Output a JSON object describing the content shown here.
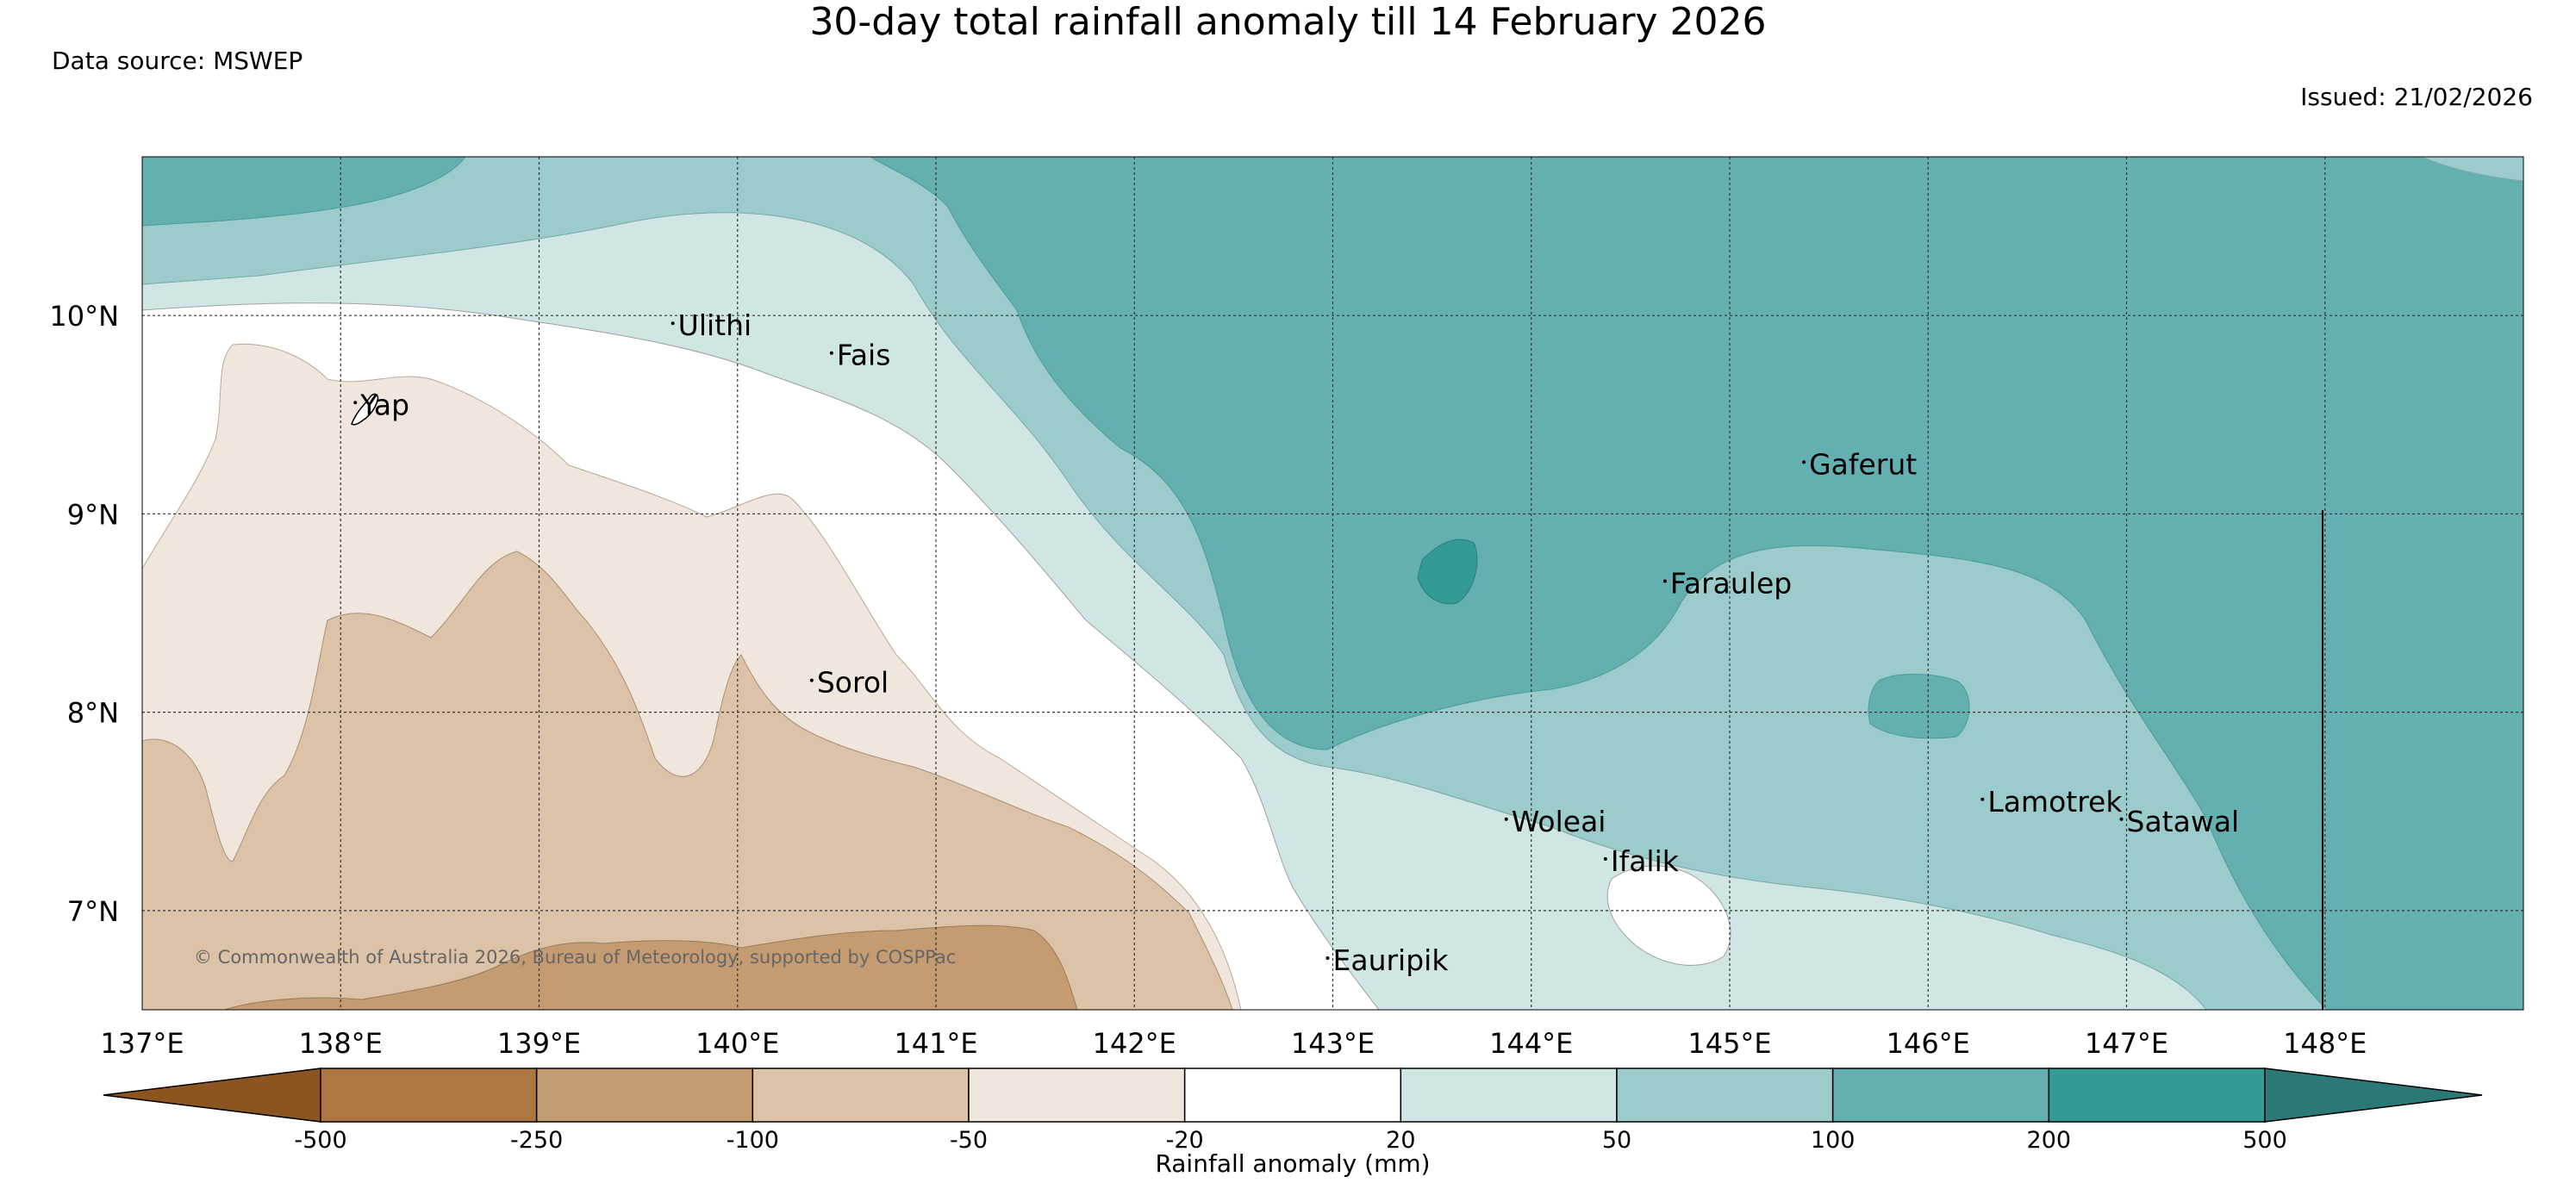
{
  "header": {
    "title": "30-day total rainfall anomaly till 14 February 2026",
    "source": "Data source: MSWEP",
    "issued": "Issued: 21/02/2026"
  },
  "map": {
    "lon_range": [
      137,
      149
    ],
    "lat_range": [
      6.5,
      10.8
    ],
    "lon_ticks": [
      "137°E",
      "138°E",
      "139°E",
      "140°E",
      "141°E",
      "142°E",
      "143°E",
      "144°E",
      "145°E",
      "146°E",
      "147°E",
      "148°E"
    ],
    "lat_ticks": [
      "10°N",
      "9°N",
      "8°N",
      "7°N"
    ],
    "copyright": "© Commonwealth of Australia 2026, Bureau of Meteorology, supported by COSPPac",
    "places": [
      {
        "name": "Ulithi",
        "lon": 139.7,
        "lat": 9.9
      },
      {
        "name": "Fais",
        "lon": 140.5,
        "lat": 9.75
      },
      {
        "name": "Yap",
        "lon": 138.1,
        "lat": 9.5
      },
      {
        "name": "Gaferut",
        "lon": 145.4,
        "lat": 9.2
      },
      {
        "name": "Faraulep",
        "lon": 144.7,
        "lat": 8.6
      },
      {
        "name": "Sorol",
        "lon": 140.4,
        "lat": 8.1
      },
      {
        "name": "Woleai",
        "lon": 143.9,
        "lat": 7.4
      },
      {
        "name": "Ifalik",
        "lon": 144.4,
        "lat": 7.2
      },
      {
        "name": "Lamotrek",
        "lon": 146.3,
        "lat": 7.5
      },
      {
        "name": "Satawal",
        "lon": 147.0,
        "lat": 7.4
      },
      {
        "name": "Eauripik",
        "lon": 143.0,
        "lat": 6.7
      }
    ]
  },
  "colorbar": {
    "label": "Rainfall anomaly (mm)",
    "ticks": [
      "-500",
      "-250",
      "-100",
      "-50",
      "-20",
      "20",
      "50",
      "100",
      "200",
      "500"
    ],
    "colors": [
      "#8c5520",
      "#ae7640",
      "#c59c72",
      "#dcc2a7",
      "#f1e6dc",
      "#ffffff",
      "#cfe6e5",
      "#9ccbcb",
      "#64b0b0",
      "#349a96",
      "#2a7977"
    ]
  }
}
